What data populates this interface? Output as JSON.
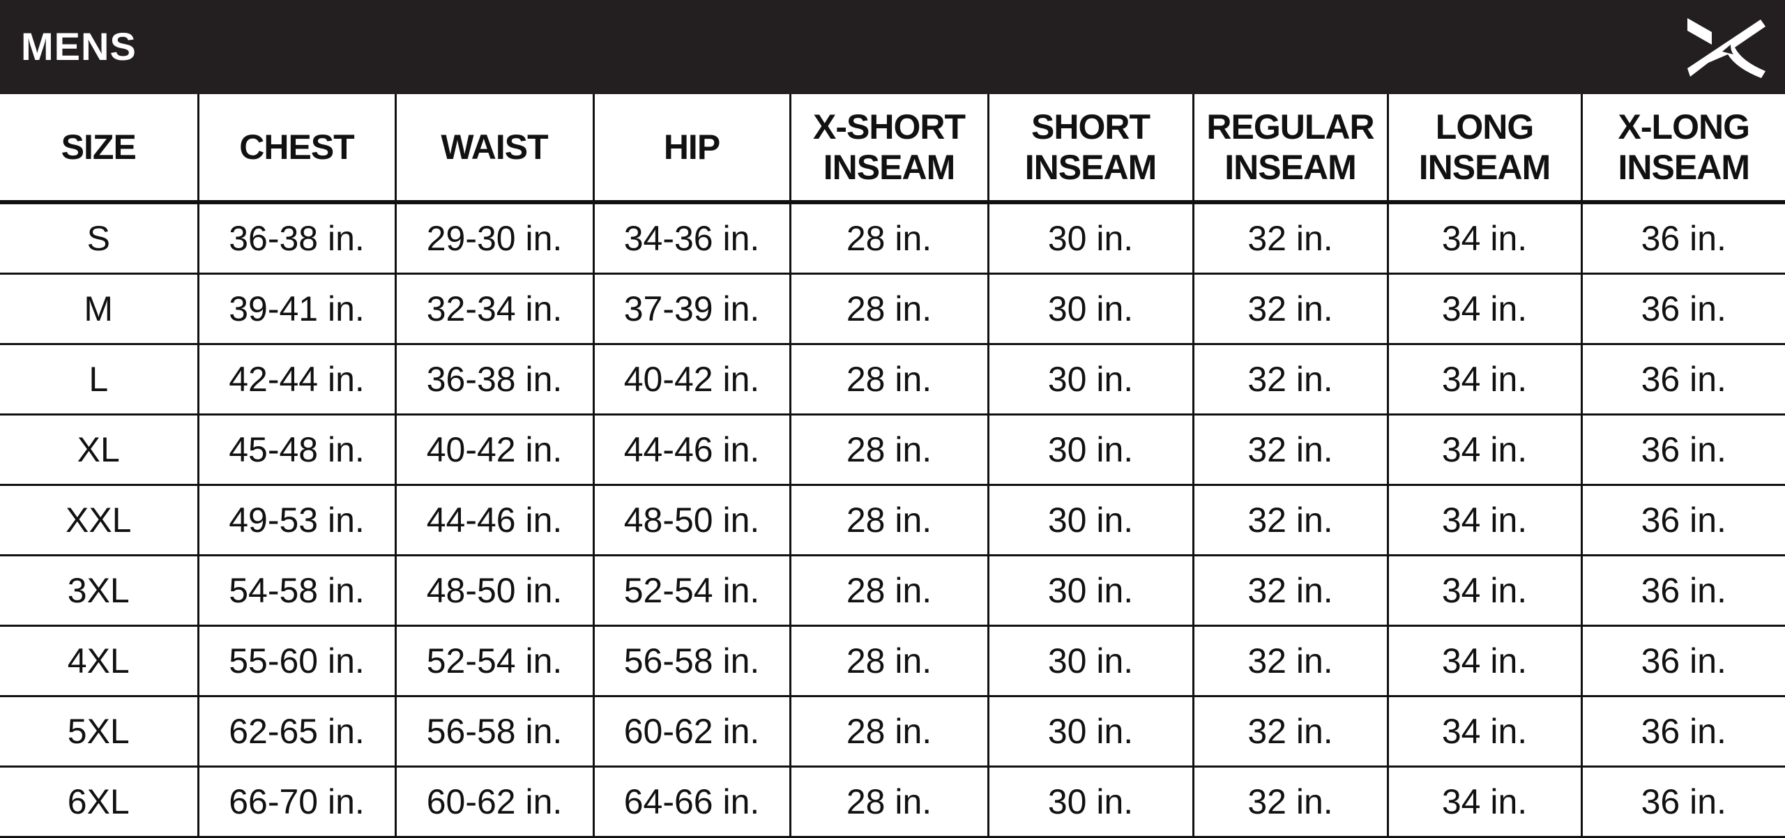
{
  "header": {
    "title": "MENS",
    "logo_icon": "brand-x-logo",
    "background_color": "#231f20"
  },
  "table": {
    "columns": [
      "SIZE",
      "CHEST",
      "WAIST",
      "HIP",
      "X-SHORT\nINSEAM",
      "SHORT\nINSEAM",
      "REGULAR\nINSEAM",
      "LONG\nINSEAM",
      "X-LONG\nINSEAM"
    ],
    "rows": [
      [
        "S",
        "36-38 in.",
        "29-30 in.",
        "34-36 in.",
        "28 in.",
        "30 in.",
        "32 in.",
        "34 in.",
        "36 in."
      ],
      [
        "M",
        "39-41 in.",
        "32-34 in.",
        "37-39 in.",
        "28 in.",
        "30 in.",
        "32 in.",
        "34 in.",
        "36 in."
      ],
      [
        "L",
        "42-44 in.",
        "36-38 in.",
        "40-42 in.",
        "28 in.",
        "30 in.",
        "32 in.",
        "34 in.",
        "36 in."
      ],
      [
        "XL",
        "45-48 in.",
        "40-42 in.",
        "44-46 in.",
        "28 in.",
        "30 in.",
        "32 in.",
        "34 in.",
        "36 in."
      ],
      [
        "XXL",
        "49-53 in.",
        "44-46 in.",
        "48-50 in.",
        "28 in.",
        "30 in.",
        "32 in.",
        "34 in.",
        "36 in."
      ],
      [
        "3XL",
        "54-58 in.",
        "48-50 in.",
        "52-54 in.",
        "28 in.",
        "30 in.",
        "32 in.",
        "34 in.",
        "36 in."
      ],
      [
        "4XL",
        "55-60 in.",
        "52-54 in.",
        "56-58 in.",
        "28 in.",
        "30 in.",
        "32 in.",
        "34 in.",
        "36 in."
      ],
      [
        "5XL",
        "62-65 in.",
        "56-58 in.",
        "60-62 in.",
        "28 in.",
        "30 in.",
        "32 in.",
        "34 in.",
        "36 in."
      ],
      [
        "6XL",
        "66-70 in.",
        "60-62 in.",
        "64-66 in.",
        "28 in.",
        "30 in.",
        "32 in.",
        "34 in.",
        "36 in."
      ]
    ]
  }
}
